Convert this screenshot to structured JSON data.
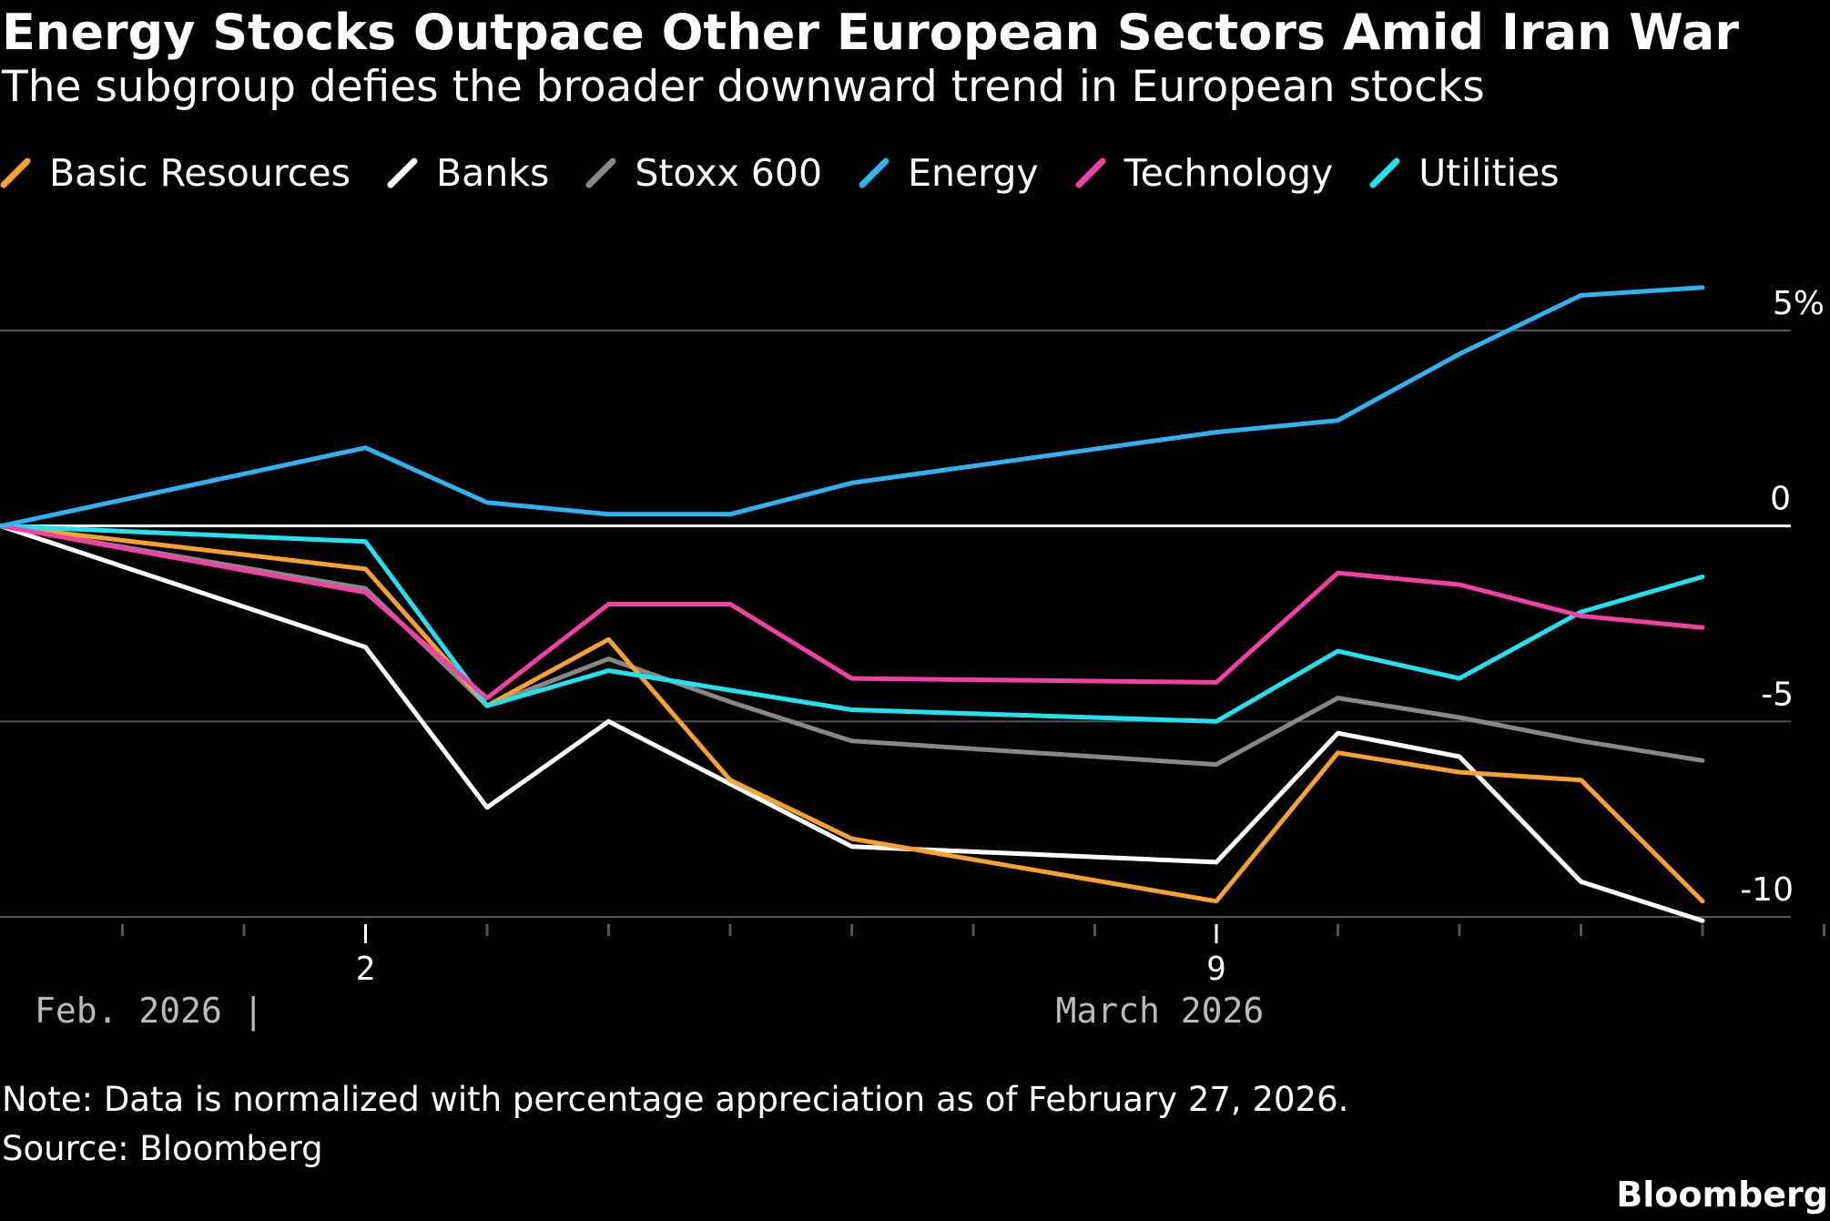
{
  "title": "Energy Stocks Outpace Other European Sectors Amid Iran War",
  "subtitle": "The subgroup defies the broader downward trend in European stocks",
  "note": "Note: Data is normalized with percentage appreciation as of February 27, 2026.",
  "source": "Source: Bloomberg",
  "brand": "Bloomberg",
  "colors": {
    "background": "#000000",
    "text": "#ffffff",
    "gridline": "#555555",
    "zeroline": "#ffffff",
    "axis_period_label": "#bbbbbb"
  },
  "chart_data": {
    "type": "line",
    "x": [
      "2026-02-27",
      "2026-03-02",
      "2026-03-03",
      "2026-03-04",
      "2026-03-05",
      "2026-03-06",
      "2026-03-09",
      "2026-03-10",
      "2026-03-11",
      "2026-03-12",
      "2026-03-13"
    ],
    "series": [
      {
        "name": "Basic Resources",
        "color": "#f7a12f",
        "values": [
          0,
          -1.1,
          -4.6,
          -2.9,
          -6.5,
          -8.0,
          -9.6,
          -5.8,
          -6.3,
          -6.5,
          -9.6
        ]
      },
      {
        "name": "Banks",
        "color": "#ffffff",
        "values": [
          0,
          -3.1,
          -7.2,
          -5.0,
          -6.6,
          -8.2,
          -8.6,
          -5.3,
          -5.9,
          -9.1,
          -10.1
        ]
      },
      {
        "name": "Stoxx 600",
        "color": "#888888",
        "values": [
          0,
          -1.6,
          -4.6,
          -3.4,
          -4.5,
          -5.5,
          -6.1,
          -4.4,
          -4.9,
          -5.5,
          -6.0
        ]
      },
      {
        "name": "Energy",
        "color": "#2fb2f0",
        "values": [
          0,
          2.0,
          0.6,
          0.3,
          0.3,
          1.1,
          2.4,
          2.7,
          4.4,
          5.9,
          6.1
        ]
      },
      {
        "name": "Technology",
        "color": "#f33fa6",
        "values": [
          0,
          -1.7,
          -4.4,
          -2.0,
          -2.0,
          -3.9,
          -4.0,
          -1.2,
          -1.5,
          -2.3,
          -2.6
        ]
      },
      {
        "name": "Utilities",
        "color": "#1fe3f0",
        "values": [
          0,
          -0.4,
          -4.6,
          -3.7,
          -4.2,
          -4.7,
          -5.0,
          -3.2,
          -3.9,
          -2.2,
          -1.3
        ]
      }
    ],
    "x_tick_labels": [
      {
        "date": "2026-03-02",
        "label": "2"
      },
      {
        "date": "2026-03-09",
        "label": "9"
      }
    ],
    "x_minor_ticks": [
      "2026-02-28",
      "2026-03-01",
      "2026-03-02",
      "2026-03-03",
      "2026-03-04",
      "2026-03-05",
      "2026-03-06",
      "2026-03-07",
      "2026-03-08",
      "2026-03-09",
      "2026-03-10",
      "2026-03-11",
      "2026-03-12",
      "2026-03-13",
      "2026-03-14"
    ],
    "x_period_labels": [
      {
        "label": "Feb. 2026 |",
        "anchor": "2026-02-27"
      },
      {
        "label": "March 2026",
        "anchor": "2026-03-08"
      }
    ],
    "x_range": [
      "2026-02-27",
      "2026-03-14"
    ],
    "y_ticks": [
      {
        "value": 5,
        "label": "5%"
      },
      {
        "value": 0,
        "label": "0"
      },
      {
        "value": -5,
        "label": "-5"
      },
      {
        "value": -10,
        "label": "-10"
      }
    ],
    "ylim": [
      -10,
      5
    ],
    "grid": true,
    "legend_position": "top-left"
  }
}
